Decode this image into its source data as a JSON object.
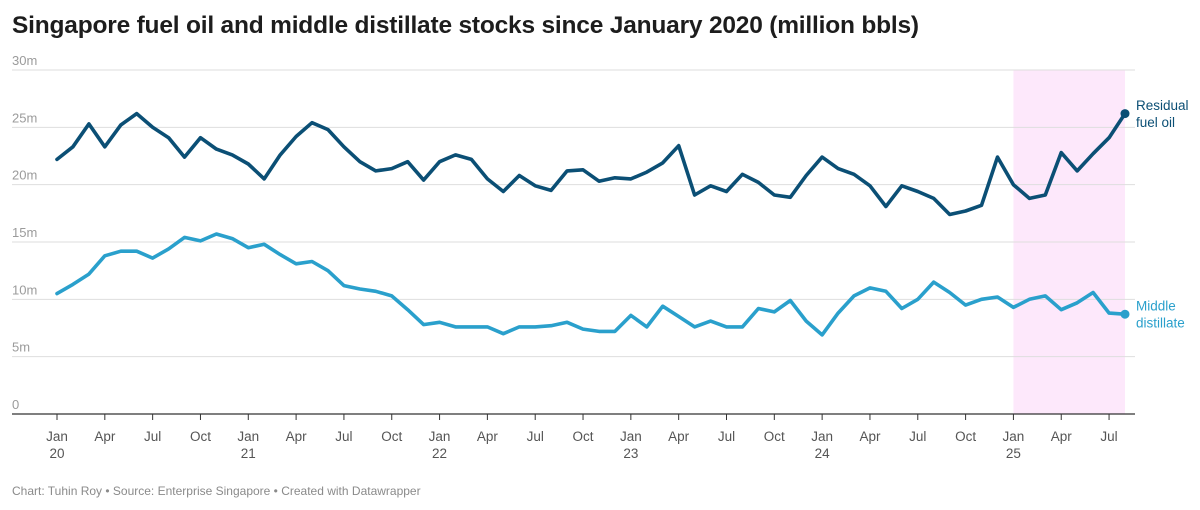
{
  "title": "Singapore fuel oil and middle distillate stocks since January 2020 (million bbls)",
  "footer": "Chart: Tuhin Roy • Source: Enterprise Singapore • Created with Datawrapper",
  "colors": {
    "residual": "#0b4f75",
    "middle": "#2aa0cc",
    "highlight": "#fde8fb",
    "grid": "#dedede",
    "axis": "#333333"
  },
  "chart_data": {
    "type": "line",
    "title": "Singapore fuel oil and middle distillate stocks since January 2020 (million bbls)",
    "xlabel": "",
    "ylabel": "",
    "ylim": [
      0,
      30
    ],
    "y_ticks": [
      {
        "value": 0,
        "label": "0"
      },
      {
        "value": 5,
        "label": "5m"
      },
      {
        "value": 10,
        "label": "10m"
      },
      {
        "value": 15,
        "label": "15m"
      },
      {
        "value": 20,
        "label": "20m"
      },
      {
        "value": 25,
        "label": "25m"
      },
      {
        "value": 30,
        "label": "30m"
      }
    ],
    "x_start": "2020-01",
    "x_end": "2025-08",
    "x_ticks": [
      {
        "month": "2020-01",
        "line1": "Jan",
        "line2": "20"
      },
      {
        "month": "2020-04",
        "line1": "Apr",
        "line2": ""
      },
      {
        "month": "2020-07",
        "line1": "Jul",
        "line2": ""
      },
      {
        "month": "2020-10",
        "line1": "Oct",
        "line2": ""
      },
      {
        "month": "2021-01",
        "line1": "Jan",
        "line2": "21"
      },
      {
        "month": "2021-04",
        "line1": "Apr",
        "line2": ""
      },
      {
        "month": "2021-07",
        "line1": "Jul",
        "line2": ""
      },
      {
        "month": "2021-10",
        "line1": "Oct",
        "line2": ""
      },
      {
        "month": "2022-01",
        "line1": "Jan",
        "line2": "22"
      },
      {
        "month": "2022-04",
        "line1": "Apr",
        "line2": ""
      },
      {
        "month": "2022-07",
        "line1": "Jul",
        "line2": ""
      },
      {
        "month": "2022-10",
        "line1": "Oct",
        "line2": ""
      },
      {
        "month": "2023-01",
        "line1": "Jan",
        "line2": "23"
      },
      {
        "month": "2023-04",
        "line1": "Apr",
        "line2": ""
      },
      {
        "month": "2023-07",
        "line1": "Jul",
        "line2": ""
      },
      {
        "month": "2023-10",
        "line1": "Oct",
        "line2": ""
      },
      {
        "month": "2024-01",
        "line1": "Jan",
        "line2": "24"
      },
      {
        "month": "2024-04",
        "line1": "Apr",
        "line2": ""
      },
      {
        "month": "2024-07",
        "line1": "Jul",
        "line2": ""
      },
      {
        "month": "2024-10",
        "line1": "Oct",
        "line2": ""
      },
      {
        "month": "2025-01",
        "line1": "Jan",
        "line2": "25"
      },
      {
        "month": "2025-04",
        "line1": "Apr",
        "line2": ""
      },
      {
        "month": "2025-07",
        "line1": "Jul",
        "line2": ""
      }
    ],
    "highlight_range": [
      "2025-01",
      "2025-08"
    ],
    "grid": true,
    "series": [
      {
        "name": "Residual fuel oil",
        "label_lines": [
          "Residual",
          "fuel oil"
        ],
        "values": [
          22.2,
          23.3,
          25.3,
          23.3,
          25.2,
          26.2,
          25.0,
          24.1,
          22.4,
          24.1,
          23.1,
          22.6,
          21.8,
          20.5,
          22.6,
          24.2,
          25.4,
          24.8,
          23.3,
          22.0,
          21.2,
          21.4,
          22.0,
          20.4,
          22.0,
          22.6,
          22.2,
          20.5,
          19.4,
          20.8,
          19.9,
          19.5,
          21.2,
          21.3,
          20.3,
          20.6,
          20.5,
          21.1,
          21.9,
          23.4,
          19.1,
          19.9,
          19.4,
          20.9,
          20.2,
          19.1,
          18.9,
          20.8,
          22.4,
          21.4,
          20.9,
          19.9,
          18.1,
          19.9,
          19.4,
          18.8,
          17.4,
          17.7,
          18.2,
          22.4,
          20.0,
          18.8,
          19.1,
          22.8,
          21.2,
          22.7,
          24.1,
          26.2
        ]
      },
      {
        "name": "Middle distillate",
        "label_lines": [
          "Middle",
          "distillate"
        ],
        "values": [
          10.5,
          11.3,
          12.2,
          13.8,
          14.2,
          14.2,
          13.6,
          14.4,
          15.4,
          15.1,
          15.7,
          15.3,
          14.5,
          14.8,
          13.9,
          13.1,
          13.3,
          12.5,
          11.2,
          10.9,
          10.7,
          10.3,
          9.1,
          7.8,
          8.0,
          7.6,
          7.6,
          7.6,
          7.0,
          7.6,
          7.6,
          7.7,
          8.0,
          7.4,
          7.2,
          7.2,
          8.6,
          7.6,
          9.4,
          8.5,
          7.6,
          8.1,
          7.6,
          7.6,
          9.2,
          8.9,
          9.9,
          8.1,
          6.9,
          8.8,
          10.3,
          11.0,
          10.7,
          9.2,
          10.0,
          11.5,
          10.6,
          9.5,
          10.0,
          10.2,
          9.3,
          10.0,
          10.3,
          9.1,
          9.7,
          10.6,
          8.8,
          8.7
        ]
      }
    ]
  }
}
